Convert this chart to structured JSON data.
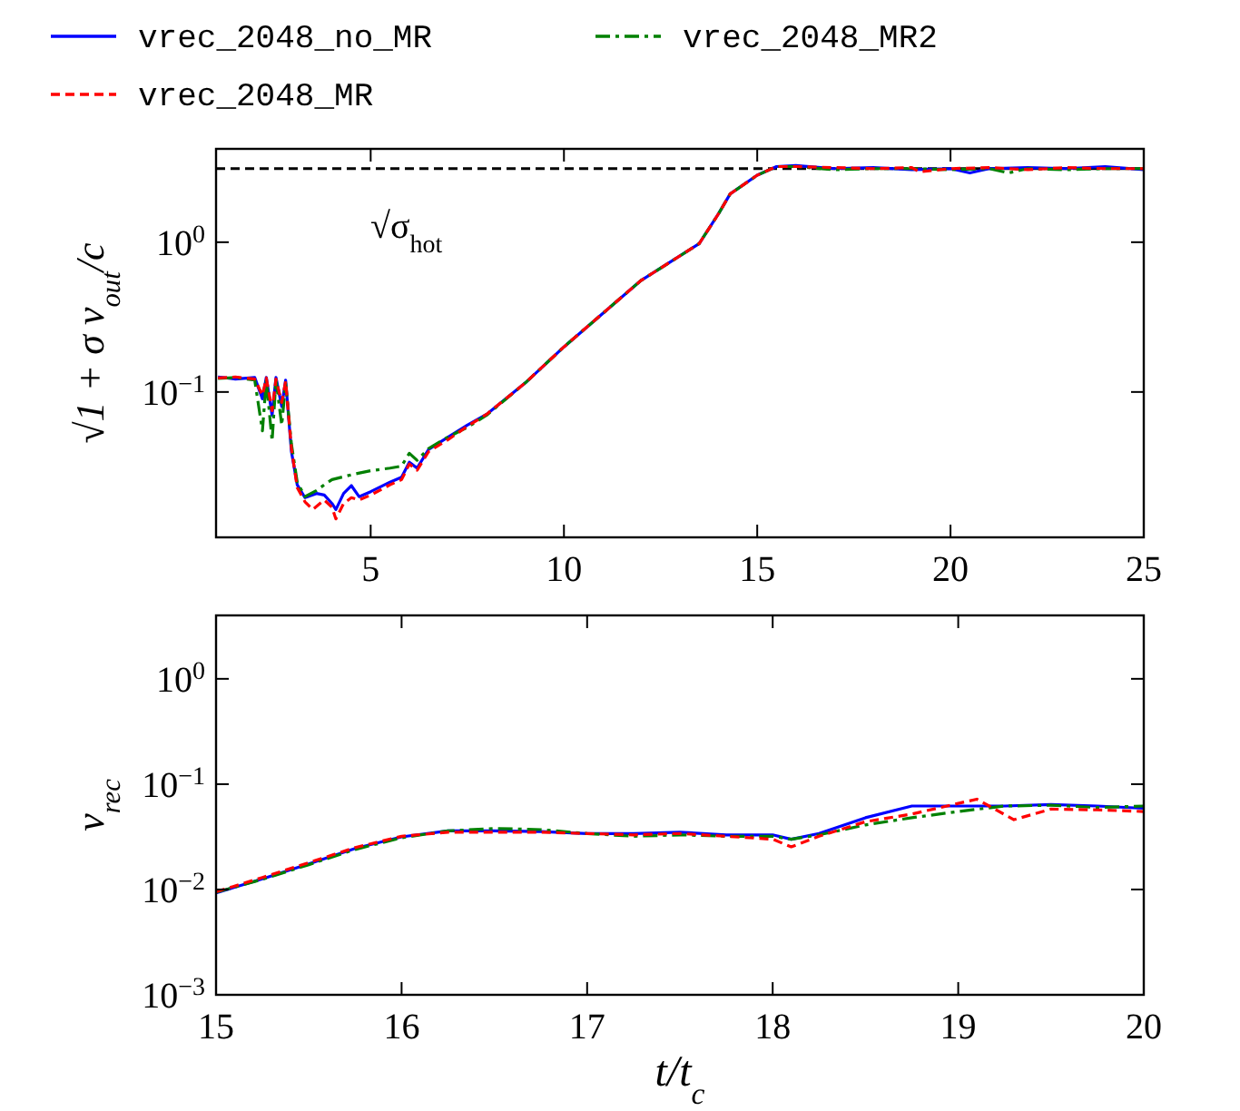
{
  "chart_data": [
    {
      "type": "line",
      "ylabel": "√1 + σ v$_{out}$/c",
      "log": true,
      "legend": "top",
      "grid": false,
      "xlim": [
        1,
        25
      ],
      "ylim": [
        0.0107,
        4.2
      ],
      "xticks": [
        5,
        10,
        15,
        20,
        25
      ],
      "yticks": [
        {
          "value": 0.1,
          "label": "10$^{−1}$"
        },
        {
          "value": 1,
          "label": "10$^{0}$"
        }
      ],
      "ref_lines": [
        {
          "axis": "y",
          "value": 3.1,
          "label": "√σ$_{hot}$",
          "color": "#000000",
          "line_style": "dashed"
        }
      ],
      "series": [
        {
          "name": "vrec_2048_no_MR",
          "color": "#0000ff",
          "line_style": "solid",
          "x": [
            1.05,
            1.5,
            2.0,
            2.2,
            2.3,
            2.45,
            2.55,
            2.7,
            2.8,
            2.95,
            3.1,
            3.3,
            3.6,
            3.8,
            4.0,
            4.1,
            4.3,
            4.5,
            4.7,
            5.0,
            5.5,
            5.8,
            6.0,
            6.2,
            6.5,
            7.0,
            7.5,
            8.0,
            9.0,
            10,
            11,
            12,
            13,
            13.5,
            14,
            14.3,
            15,
            15.5,
            16,
            17,
            18,
            19,
            20,
            20.5,
            21,
            22,
            23,
            24,
            25
          ],
          "values": [
            0.126,
            0.122,
            0.125,
            0.09,
            0.125,
            0.07,
            0.125,
            0.08,
            0.12,
            0.04,
            0.024,
            0.0197,
            0.021,
            0.0205,
            0.018,
            0.0164,
            0.021,
            0.0237,
            0.02,
            0.0216,
            0.025,
            0.027,
            0.034,
            0.031,
            0.0414,
            0.0499,
            0.06,
            0.071,
            0.115,
            0.2,
            0.334,
            0.557,
            0.81,
            0.98,
            1.55,
            2.1,
            2.8,
            3.2,
            3.25,
            3.1,
            3.15,
            3.05,
            3.1,
            2.9,
            3.1,
            3.15,
            3.1,
            3.2,
            3.05
          ]
        },
        {
          "name": "vrec_2048_MR",
          "color": "#ff0000",
          "line_style": "dashed",
          "x": [
            1.05,
            1.5,
            2.0,
            2.2,
            2.3,
            2.45,
            2.55,
            2.7,
            2.8,
            2.95,
            3.1,
            3.3,
            3.5,
            3.8,
            4.0,
            4.1,
            4.3,
            4.5,
            4.7,
            5.0,
            5.5,
            5.8,
            6.0,
            6.2,
            6.5,
            7.0,
            7.5,
            8.0,
            9.0,
            10,
            11,
            12,
            13,
            13.5,
            14,
            14.3,
            15,
            15.5,
            16,
            17,
            18,
            19,
            19.2,
            20,
            21,
            22,
            23,
            24,
            25
          ],
          "values": [
            0.124,
            0.126,
            0.122,
            0.095,
            0.124,
            0.075,
            0.122,
            0.085,
            0.118,
            0.042,
            0.023,
            0.0185,
            0.0164,
            0.019,
            0.017,
            0.0142,
            0.018,
            0.0197,
            0.019,
            0.0205,
            0.024,
            0.026,
            0.033,
            0.03,
            0.04,
            0.048,
            0.059,
            0.071,
            0.115,
            0.2,
            0.334,
            0.557,
            0.81,
            0.98,
            1.55,
            2.1,
            2.8,
            3.2,
            3.2,
            3.15,
            3.1,
            3.15,
            2.95,
            3.1,
            3.15,
            3.05,
            3.15,
            3.1,
            3.1
          ]
        },
        {
          "name": "vrec_2048_MR2",
          "color": "#008000",
          "line_style": "dashdot",
          "x": [
            1.05,
            1.5,
            2.0,
            2.2,
            2.3,
            2.45,
            2.55,
            2.7,
            2.8,
            2.95,
            3.1,
            3.3,
            3.6,
            3.8,
            4.0,
            4.5,
            5.0,
            5.5,
            5.8,
            6.0,
            6.2,
            6.5,
            7.0,
            7.5,
            8.0,
            9.0,
            10,
            11,
            12,
            13,
            13.5,
            14,
            14.3,
            15,
            15.5,
            16,
            17,
            18,
            19,
            20,
            21,
            21.5,
            22,
            23,
            24,
            25
          ],
          "values": [
            0.123,
            0.125,
            0.12,
            0.055,
            0.12,
            0.047,
            0.12,
            0.06,
            0.115,
            0.045,
            0.025,
            0.02,
            0.022,
            0.024,
            0.026,
            0.028,
            0.0298,
            0.031,
            0.032,
            0.039,
            0.035,
            0.042,
            0.05,
            0.058,
            0.07,
            0.115,
            0.2,
            0.334,
            0.557,
            0.81,
            0.98,
            1.55,
            2.1,
            2.8,
            3.2,
            3.2,
            3.05,
            3.1,
            3.1,
            3.05,
            3.1,
            2.9,
            3.1,
            3.05,
            3.1,
            3.1
          ]
        }
      ]
    },
    {
      "type": "line",
      "xlabel": "t/t$_{c}$",
      "ylabel": "v$_{rec}$",
      "log": true,
      "grid": false,
      "xlim": [
        15,
        20
      ],
      "ylim": [
        0.001,
        4
      ],
      "xticks": [
        15,
        16,
        17,
        18,
        19,
        20
      ],
      "yticks": [
        {
          "value": 0.001,
          "label": "10$^{−3}$"
        },
        {
          "value": 0.01,
          "label": "10$^{−2}$"
        },
        {
          "value": 0.1,
          "label": "10$^{−1}$"
        },
        {
          "value": 1,
          "label": "10$^{0}$"
        }
      ],
      "series": [
        {
          "color": "#0000ff",
          "line_style": "solid",
          "x": [
            15.0,
            15.25,
            15.5,
            15.75,
            16.0,
            16.25,
            16.5,
            16.75,
            17.0,
            17.25,
            17.5,
            17.75,
            18.0,
            18.1,
            18.25,
            18.5,
            18.75,
            19.0,
            19.25,
            19.5,
            19.75,
            20
          ],
          "values": [
            0.0093,
            0.0126,
            0.0175,
            0.0245,
            0.0316,
            0.036,
            0.036,
            0.0355,
            0.034,
            0.034,
            0.035,
            0.033,
            0.033,
            0.03,
            0.034,
            0.048,
            0.062,
            0.062,
            0.062,
            0.064,
            0.062,
            0.059
          ]
        },
        {
          "color": "#ff0000",
          "line_style": "dashed",
          "x": [
            15.0,
            15.25,
            15.5,
            15.75,
            16.0,
            16.25,
            16.5,
            16.75,
            17.0,
            17.25,
            17.5,
            17.75,
            18.0,
            18.1,
            18.25,
            18.5,
            18.75,
            19.1,
            19.3,
            19.5,
            19.75,
            20
          ],
          "values": [
            0.0095,
            0.013,
            0.018,
            0.025,
            0.032,
            0.035,
            0.035,
            0.035,
            0.034,
            0.033,
            0.034,
            0.032,
            0.03,
            0.0254,
            0.032,
            0.044,
            0.052,
            0.072,
            0.046,
            0.058,
            0.057,
            0.055
          ]
        },
        {
          "color": "#008000",
          "line_style": "dashdot",
          "x": [
            15.0,
            15.25,
            15.5,
            15.75,
            16.0,
            16.25,
            16.5,
            16.75,
            17.0,
            17.25,
            17.5,
            17.75,
            18.0,
            18.1,
            18.25,
            18.5,
            18.75,
            19.0,
            19.25,
            19.5,
            19.75,
            20
          ],
          "values": [
            0.0094,
            0.0125,
            0.0172,
            0.024,
            0.031,
            0.036,
            0.038,
            0.037,
            0.034,
            0.032,
            0.033,
            0.032,
            0.032,
            0.03,
            0.033,
            0.041,
            0.048,
            0.055,
            0.062,
            0.063,
            0.06,
            0.062
          ]
        }
      ]
    }
  ]
}
